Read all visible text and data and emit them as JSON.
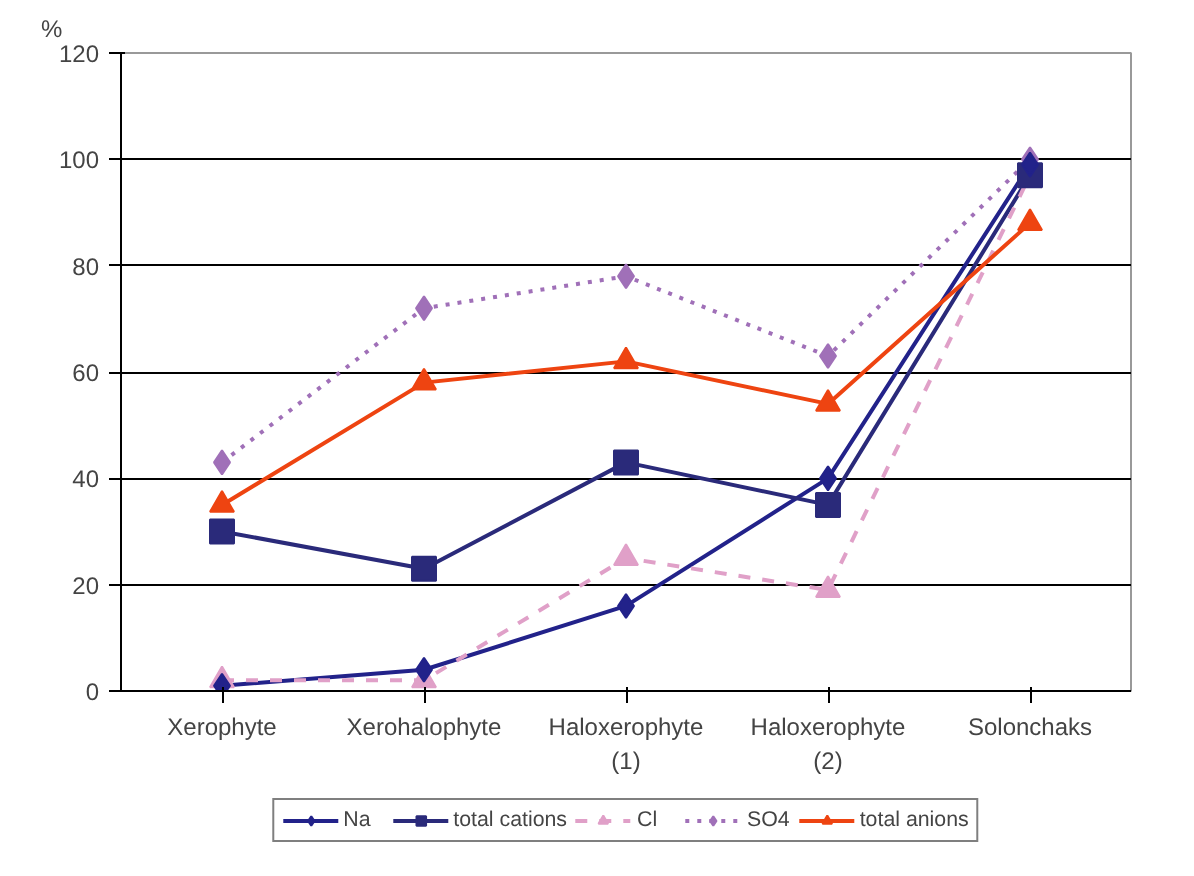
{
  "chart_data": {
    "type": "line",
    "ylabel": "%",
    "categories": [
      "Xerophyte",
      "Xerohalophyte",
      "Haloxerophyte\n(1)",
      "Haloxerophyte\n(2)",
      "Solonchaks"
    ],
    "series": [
      {
        "name": "Na",
        "color": "#22228a",
        "values": [
          1,
          4,
          16,
          40,
          99
        ],
        "marker": "diamond",
        "line_style": "solid"
      },
      {
        "name": "total cations",
        "color": "#2a2a7a",
        "values": [
          30,
          23,
          43,
          35,
          97
        ],
        "marker": "square",
        "line_style": "solid"
      },
      {
        "name": "Cl",
        "color": "#e0a0c8",
        "values": [
          2,
          2,
          25,
          19,
          97
        ],
        "marker": "triangle",
        "line_style": "dashed"
      },
      {
        "name": "SO4",
        "color": "#a070b8",
        "values": [
          43,
          72,
          78,
          63,
          100
        ],
        "marker": "diamond",
        "line_style": "dotted"
      },
      {
        "name": "total anions",
        "color": "#ee4411",
        "values": [
          35,
          58,
          62,
          54,
          88
        ],
        "marker": "triangle",
        "line_style": "solid"
      }
    ],
    "ylim": [
      0,
      120
    ],
    "yticks": [
      0,
      20,
      40,
      60,
      80,
      100,
      120
    ],
    "grid": "y",
    "legend": "bottom"
  }
}
